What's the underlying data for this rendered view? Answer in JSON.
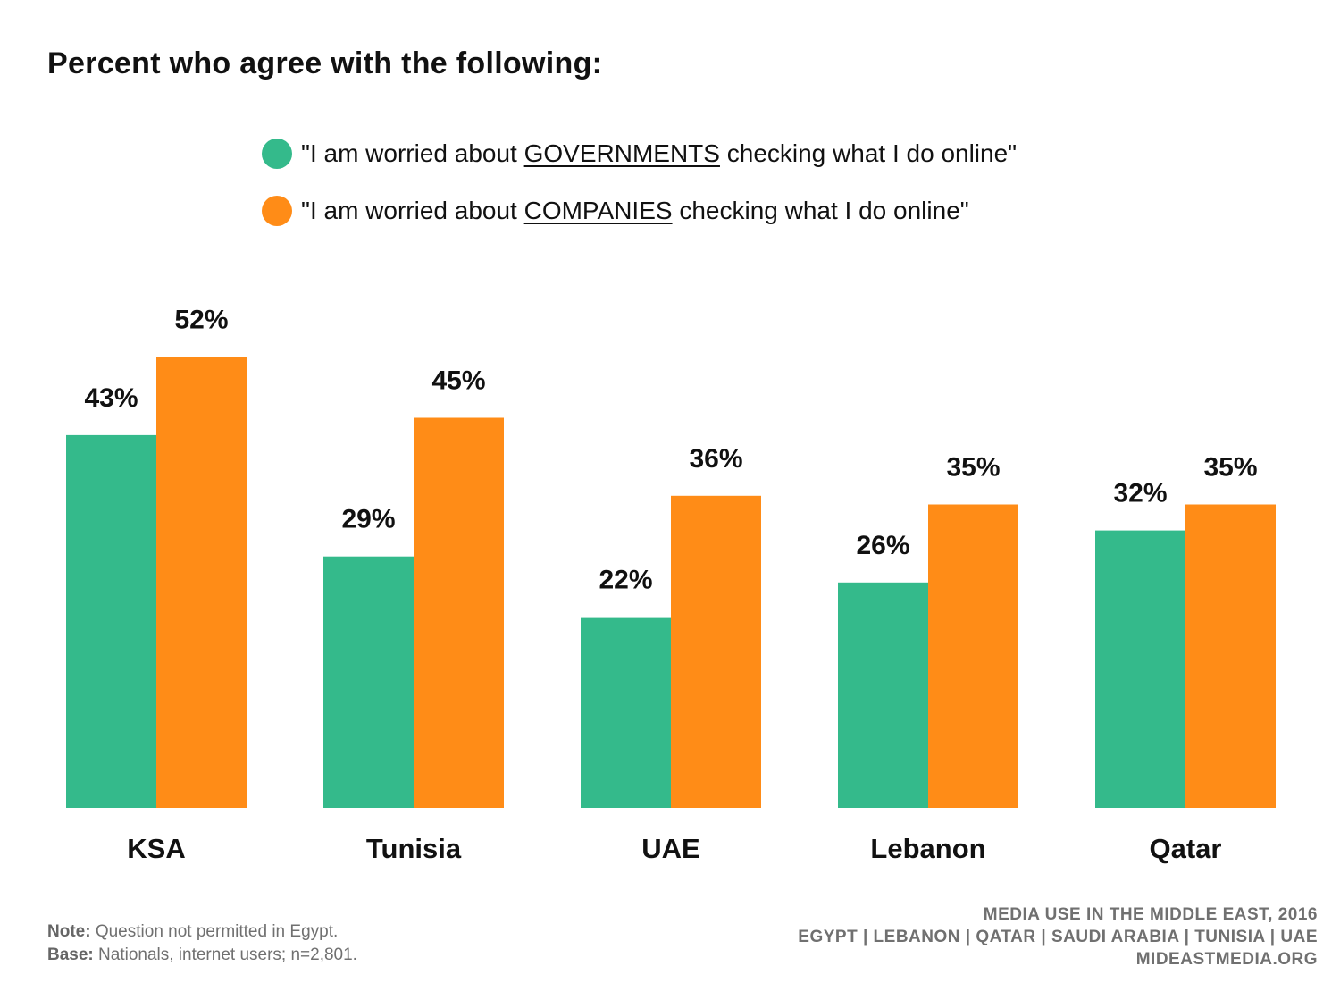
{
  "title": "Percent who agree with the following:",
  "legend": [
    {
      "pre": "\"I am worried about ",
      "key": "GOVERNMENTS",
      "post": " checking what I do online\"",
      "color": "#34ba8b"
    },
    {
      "pre": "\"I am worried about ",
      "key": "COMPANIES",
      "post": " checking what I do online\"",
      "color": "#ff8c17"
    }
  ],
  "chart_data": {
    "type": "bar",
    "categories": [
      "KSA",
      "Tunisia",
      "UAE",
      "Lebanon",
      "Qatar"
    ],
    "series": [
      {
        "values": [
          43,
          29,
          22,
          26,
          32
        ],
        "labels": [
          "43%",
          "29%",
          "22%",
          "26%",
          "32%"
        ],
        "color": "#34ba8b"
      },
      {
        "values": [
          52,
          45,
          36,
          35,
          35
        ],
        "labels": [
          "52%",
          "45%",
          "36%",
          "35%",
          "35%"
        ],
        "color": "#ff8c17"
      }
    ],
    "title": "Percent who agree with the following:",
    "xlabel": "",
    "ylabel": "",
    "ylim": [
      0,
      52
    ],
    "grid": false,
    "legend": "top"
  },
  "footnote": {
    "note_label": "Note:",
    "note_text": " Question not permitted in Egypt.",
    "base_label": "Base:",
    "base_text": " Nationals, internet users; n=2,801."
  },
  "source": {
    "line1": "MEDIA USE IN THE MIDDLE EAST, 2016",
    "line2": "EGYPT | LEBANON | QATAR | SAUDI ARABIA | TUNISIA | UAE",
    "line3": "MIDEASTMEDIA.ORG"
  }
}
